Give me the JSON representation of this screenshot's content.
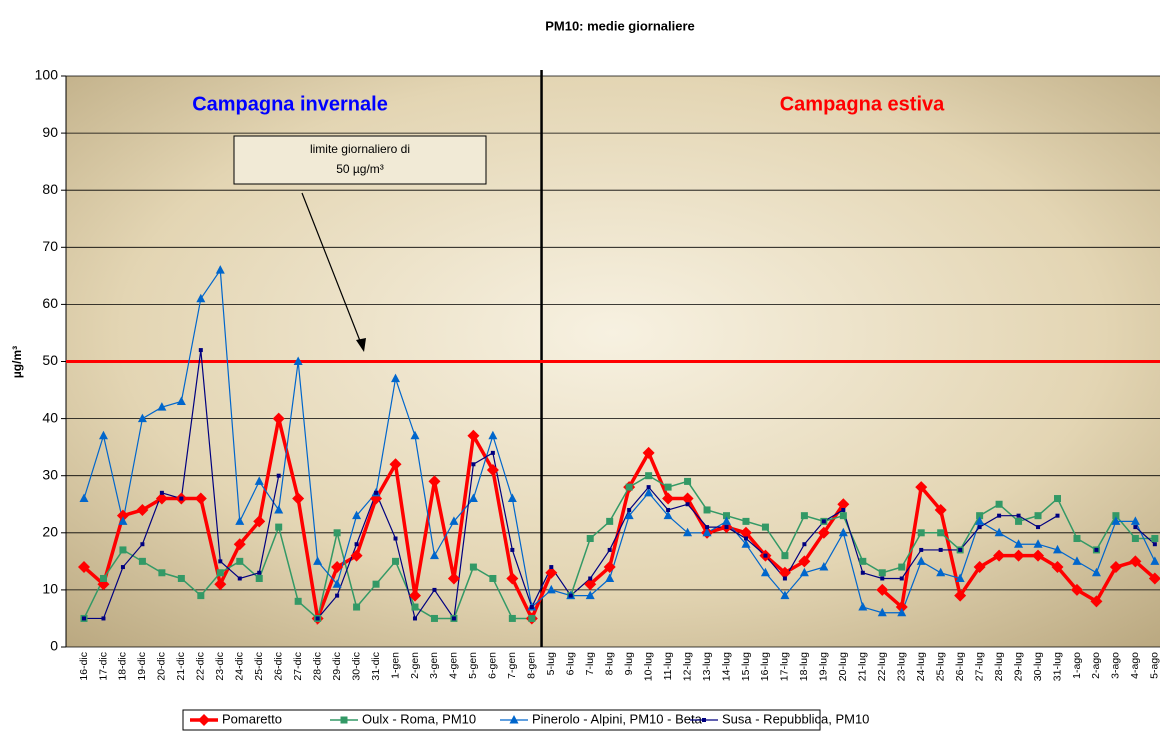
{
  "chart_data": {
    "type": "line",
    "title": "PM10: medie giornaliere",
    "y_label": "µg/m³",
    "annotations": {
      "winter": "Campagna invernale",
      "summer": "Campagna estiva",
      "limit_line1": "limite giornaliero di",
      "limit_line2": "50 µg/m³"
    },
    "limit_line": {
      "value": 50,
      "color": "#ff0000"
    },
    "categories": [
      "16-dic",
      "17-dic",
      "18-dic",
      "19-dic",
      "20-dic",
      "21-dic",
      "22-dic",
      "23-dic",
      "24-dic",
      "25-dic",
      "26-dic",
      "27-dic",
      "28-dic",
      "29-dic",
      "30-dic",
      "31-dic",
      "1-gen",
      "2-gen",
      "3-gen",
      "4-gen",
      "5-gen",
      "6-gen",
      "7-gen",
      "8-gen",
      "5-lug",
      "6-lug",
      "7-lug",
      "8-lug",
      "9-lug",
      "10-lug",
      "11-lug",
      "12-lug",
      "13-lug",
      "14-lug",
      "15-lug",
      "16-lug",
      "17-lug",
      "18-lug",
      "19-lug",
      "20-lug",
      "21-lug",
      "22-lug",
      "23-lug",
      "24-lug",
      "25-lug",
      "26-lug",
      "27-lug",
      "28-lug",
      "29-lug",
      "30-lug",
      "31-lug",
      "1-ago",
      "2-ago",
      "3-ago",
      "4-ago",
      "5-ago"
    ],
    "series": [
      {
        "name": "Pomaretto",
        "color": "#ff0000",
        "marker": "diamond",
        "values": [
          14,
          11,
          23,
          24,
          26,
          26,
          26,
          11,
          18,
          22,
          40,
          26,
          5,
          14,
          16,
          26,
          32,
          9,
          29,
          12,
          37,
          31,
          12,
          5,
          13,
          null,
          11,
          14,
          28,
          34,
          26,
          26,
          20,
          21,
          20,
          16,
          13,
          15,
          20,
          25,
          null,
          10,
          7,
          28,
          24,
          9,
          14,
          16,
          16,
          16,
          14,
          10,
          8,
          14,
          15,
          12
        ]
      },
      {
        "name": "Oulx - Roma, PM10",
        "color": "#339966",
        "marker": "square",
        "values": [
          5,
          12,
          17,
          15,
          13,
          12,
          9,
          13,
          15,
          12,
          21,
          8,
          5,
          20,
          7,
          11,
          15,
          7,
          5,
          5,
          14,
          12,
          5,
          5,
          null,
          9,
          19,
          22,
          28,
          30,
          28,
          29,
          24,
          23,
          22,
          21,
          16,
          23,
          22,
          23,
          15,
          13,
          14,
          20,
          20,
          17,
          23,
          25,
          22,
          23,
          26,
          19,
          17,
          23,
          19,
          19
        ]
      },
      {
        "name": "Pinerolo - Alpini, PM10 - Beta",
        "color": "#0066cc",
        "marker": "triangle",
        "values": [
          26,
          37,
          22,
          40,
          42,
          43,
          61,
          66,
          22,
          29,
          24,
          50,
          15,
          11,
          23,
          27,
          47,
          37,
          16,
          22,
          26,
          37,
          26,
          7,
          10,
          9,
          9,
          12,
          23,
          27,
          23,
          20,
          20,
          22,
          18,
          13,
          9,
          13,
          14,
          20,
          7,
          6,
          6,
          15,
          13,
          12,
          22,
          20,
          18,
          18,
          17,
          15,
          13,
          22,
          22,
          15
        ]
      },
      {
        "name": "Susa - Repubblica, PM10",
        "color": "#000080",
        "marker": "small-square",
        "values": [
          5,
          5,
          14,
          18,
          27,
          26,
          52,
          15,
          12,
          13,
          30,
          null,
          5,
          9,
          18,
          27,
          19,
          5,
          10,
          5,
          32,
          34,
          17,
          7,
          14,
          9,
          12,
          17,
          24,
          28,
          24,
          25,
          21,
          21,
          19,
          16,
          12,
          18,
          22,
          24,
          13,
          12,
          12,
          17,
          17,
          17,
          21,
          23,
          23,
          21,
          23,
          null,
          17,
          null,
          21,
          18
        ]
      }
    ],
    "ylim": [
      0,
      100
    ],
    "yticks": [
      0,
      10,
      20,
      30,
      40,
      50,
      60,
      70,
      80,
      90,
      100
    ],
    "grid": true
  }
}
